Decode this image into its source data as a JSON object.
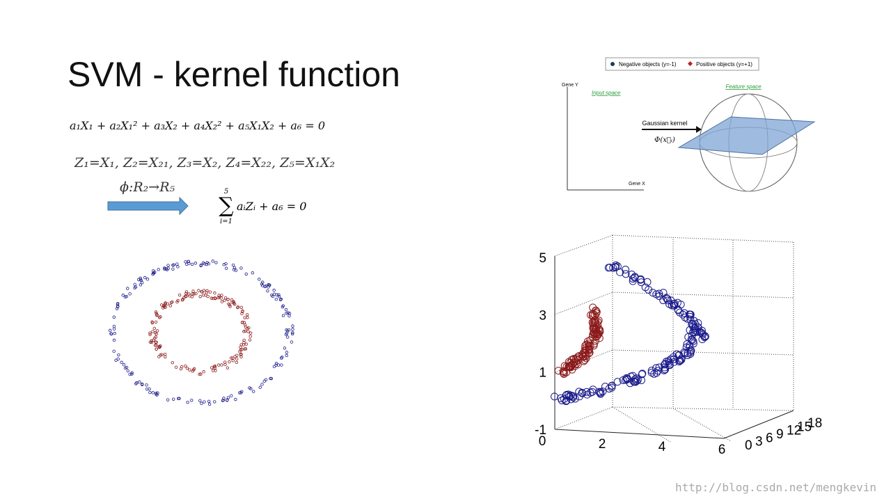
{
  "slide": {
    "title": "SVM - kernel function",
    "equation": "a₁X₁ + a₂X₁² + a₃X₂ + a₄X₂² + a₅X₁X₂ + a₆ = 0",
    "substitution": "Z₁=X₁, Z₂=X₂₁, Z₃=X₂, Z₄=X₂₂, Z₅=X₁X₂",
    "mapping": "ϕ:R₂→R₅",
    "sum": {
      "upper": "5",
      "symbol": "∑",
      "lower": "i=1",
      "body": "aᵢZᵢ + a₆ = 0"
    },
    "kernel_figure": {
      "legend": [
        "Negative objects (y=-1)",
        "Positive objects (y=+1)"
      ],
      "y_label": "Gene Y",
      "x_label": "Gene X",
      "input_space": "Input space",
      "feature_space": "Feature space",
      "kernel": "Gaussian kernel",
      "phi": "Φ(x⃗ᵢ)"
    },
    "plot3d": {
      "zticks": [
        5,
        3,
        1,
        -1
      ],
      "xticks": [
        0,
        2,
        4,
        6
      ],
      "yticks": [
        0,
        3,
        6,
        9,
        12,
        15,
        18
      ]
    },
    "watermark": "http://blog.csdn.net/mengkevin"
  }
}
